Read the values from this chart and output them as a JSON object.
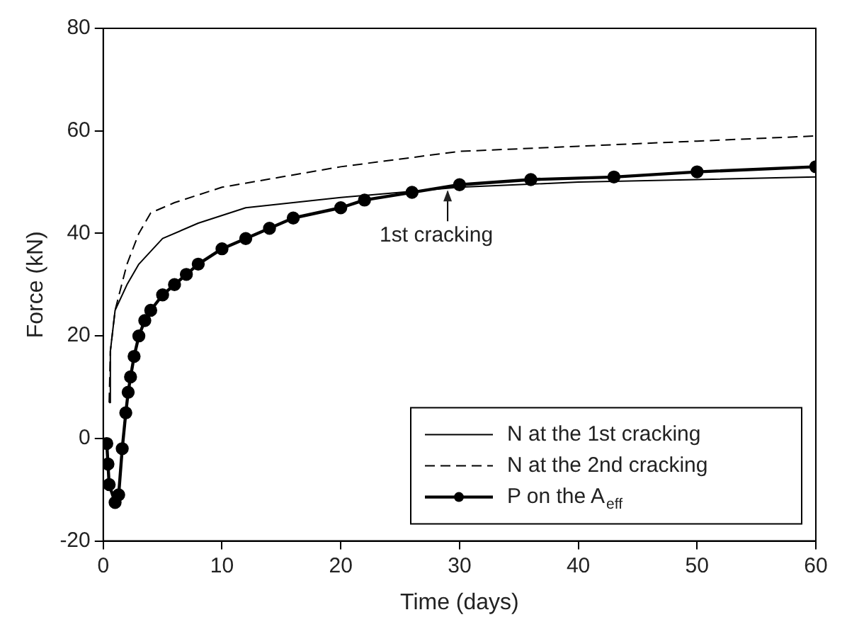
{
  "chart_data": {
    "type": "line",
    "xlabel": "Time (days)",
    "ylabel": "Force (kN)",
    "xlim": [
      0,
      60
    ],
    "xticks": [
      0,
      10,
      20,
      30,
      40,
      50,
      60
    ],
    "ylim": [
      -20,
      80
    ],
    "yticks": [
      -20,
      0,
      20,
      40,
      60,
      80
    ],
    "grid": false,
    "legend": "bottom right",
    "series": [
      {
        "name": "N at the 1st cracking",
        "color": "#000000",
        "line_style": "solid",
        "marker": "none",
        "x": [
          0.5,
          0.6,
          1,
          2,
          3,
          5,
          8,
          12,
          20,
          30,
          40,
          60
        ],
        "values": [
          7,
          17,
          25,
          30,
          34,
          39,
          42,
          45,
          47,
          49,
          50,
          51
        ]
      },
      {
        "name": "N at the 2nd cracking",
        "color": "#000000",
        "line_style": "dashed",
        "marker": "none",
        "x": [
          0.5,
          0.6,
          1,
          2,
          3,
          4,
          6,
          10,
          15,
          20,
          30,
          40,
          50,
          60
        ],
        "values": [
          7,
          17,
          25,
          34,
          40,
          44,
          46,
          49,
          51,
          53,
          56,
          57,
          58,
          59
        ]
      },
      {
        "name": "P on the A$_{eff}$",
        "color": "#000000",
        "line_style": "solid",
        "marker": "circle",
        "x": [
          0.3,
          0.4,
          0.5,
          1,
          1.3,
          1.6,
          1.9,
          2.1,
          2.3,
          2.6,
          3,
          3.5,
          4,
          5,
          6,
          7,
          8,
          10,
          12,
          14,
          16,
          20,
          22,
          26,
          30,
          36,
          43,
          50,
          60
        ],
        "values": [
          -1,
          -5,
          -9,
          -12.5,
          -11,
          -2,
          5,
          9,
          12,
          16,
          20,
          23,
          25,
          28,
          30,
          32,
          34,
          37,
          39,
          41,
          43,
          45,
          46.5,
          48,
          49.5,
          50.5,
          51,
          52,
          53
        ]
      }
    ],
    "annotations": [
      {
        "text": "1st cracking",
        "x": 29,
        "y": 49
      }
    ]
  }
}
